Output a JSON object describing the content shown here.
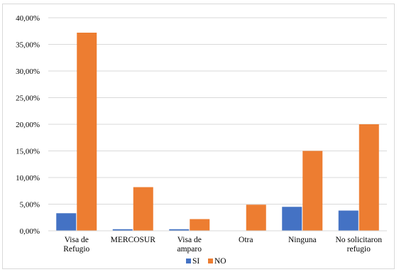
{
  "chart_data": {
    "type": "bar",
    "title": "",
    "xlabel": "",
    "ylabel": "",
    "categories": [
      [
        "Visa de",
        "Refugio"
      ],
      [
        "MERCOSUR"
      ],
      [
        "Visa de",
        "amparo"
      ],
      [
        "Otra"
      ],
      [
        "Ninguna"
      ],
      [
        "No solicitaron",
        "refugio"
      ]
    ],
    "series": [
      {
        "name": "SI",
        "color": "#4472C4",
        "values": [
          3.3,
          0.3,
          0.3,
          0.0,
          4.5,
          3.8
        ]
      },
      {
        "name": "NO",
        "color": "#ED7D31",
        "values": [
          37.2,
          8.2,
          2.2,
          4.9,
          15.0,
          20.0
        ]
      }
    ],
    "ylim": [
      0,
      40
    ],
    "ytick_step": 5,
    "ytick_labels": [
      "0,00%",
      "5,00%",
      "10,00%",
      "15,00%",
      "20,00%",
      "25,00%",
      "30,00%",
      "35,00%",
      "40,00%"
    ],
    "grid": true,
    "legend": "bottom"
  }
}
